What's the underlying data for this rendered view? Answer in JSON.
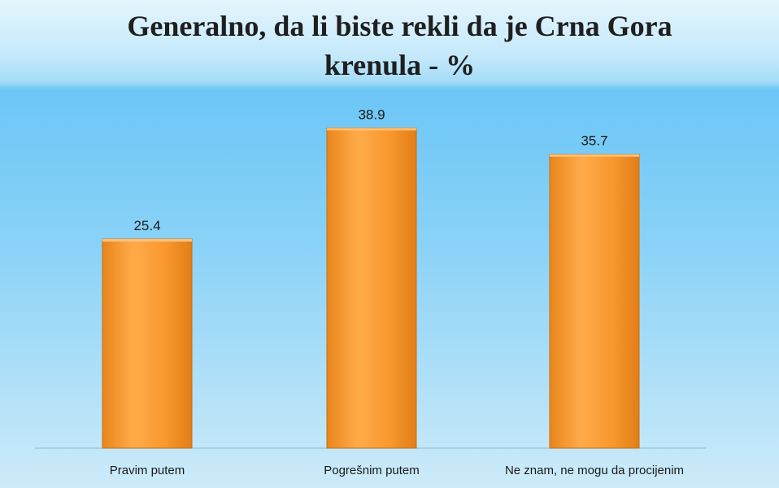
{
  "chart_data": {
    "type": "bar",
    "title_line1": "Generalno, da li biste rekli da je Crna Gora",
    "title_line2": "krenula - %",
    "categories": [
      "Pravim putem",
      "Pogrešnim putem",
      "Ne znam, ne mogu da procijenim"
    ],
    "values": [
      25.4,
      38.9,
      35.7
    ],
    "data_labels": [
      "25.4",
      "38.9",
      "35.7"
    ],
    "ylim": [
      0,
      50
    ],
    "grid": false,
    "legend": "none",
    "colors": {
      "bar": "#f5962a",
      "bar_highlight": "#ffb25a",
      "axis": "#8cb8cf"
    }
  }
}
